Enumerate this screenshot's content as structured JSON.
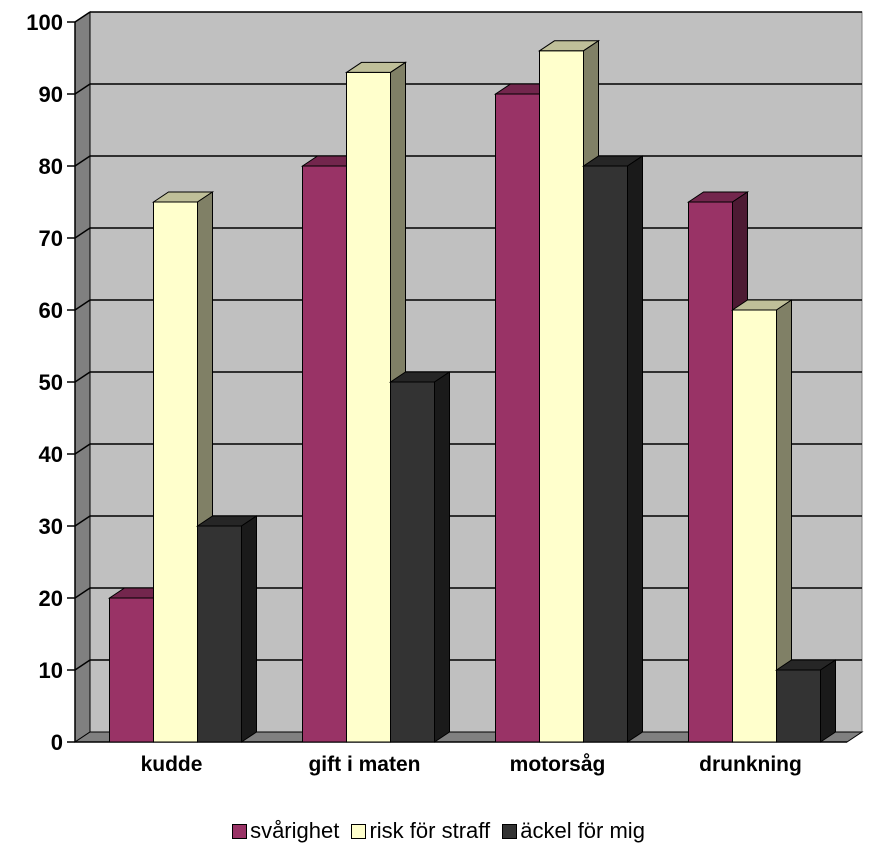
{
  "chart_data": {
    "type": "bar",
    "title": "",
    "xlabel": "",
    "ylabel": "",
    "three_d": true,
    "ylim": [
      0,
      100
    ],
    "ytick_step": 10,
    "grid": true,
    "legend_position": "bottom",
    "categories": [
      "kudde",
      "gift i maten",
      "motorsåg",
      "drunkning"
    ],
    "series": [
      {
        "name": "svårighet",
        "values": [
          20,
          80,
          90,
          75
        ],
        "color": "#993366"
      },
      {
        "name": "risk för straff",
        "values": [
          75,
          93,
          96,
          60
        ],
        "color": "#ffffcc"
      },
      {
        "name": "äckel för mig",
        "values": [
          30,
          50,
          80,
          10
        ],
        "color": "#333333"
      }
    ],
    "wall_color": "#c0c0c0",
    "floor_color": "#808080"
  }
}
